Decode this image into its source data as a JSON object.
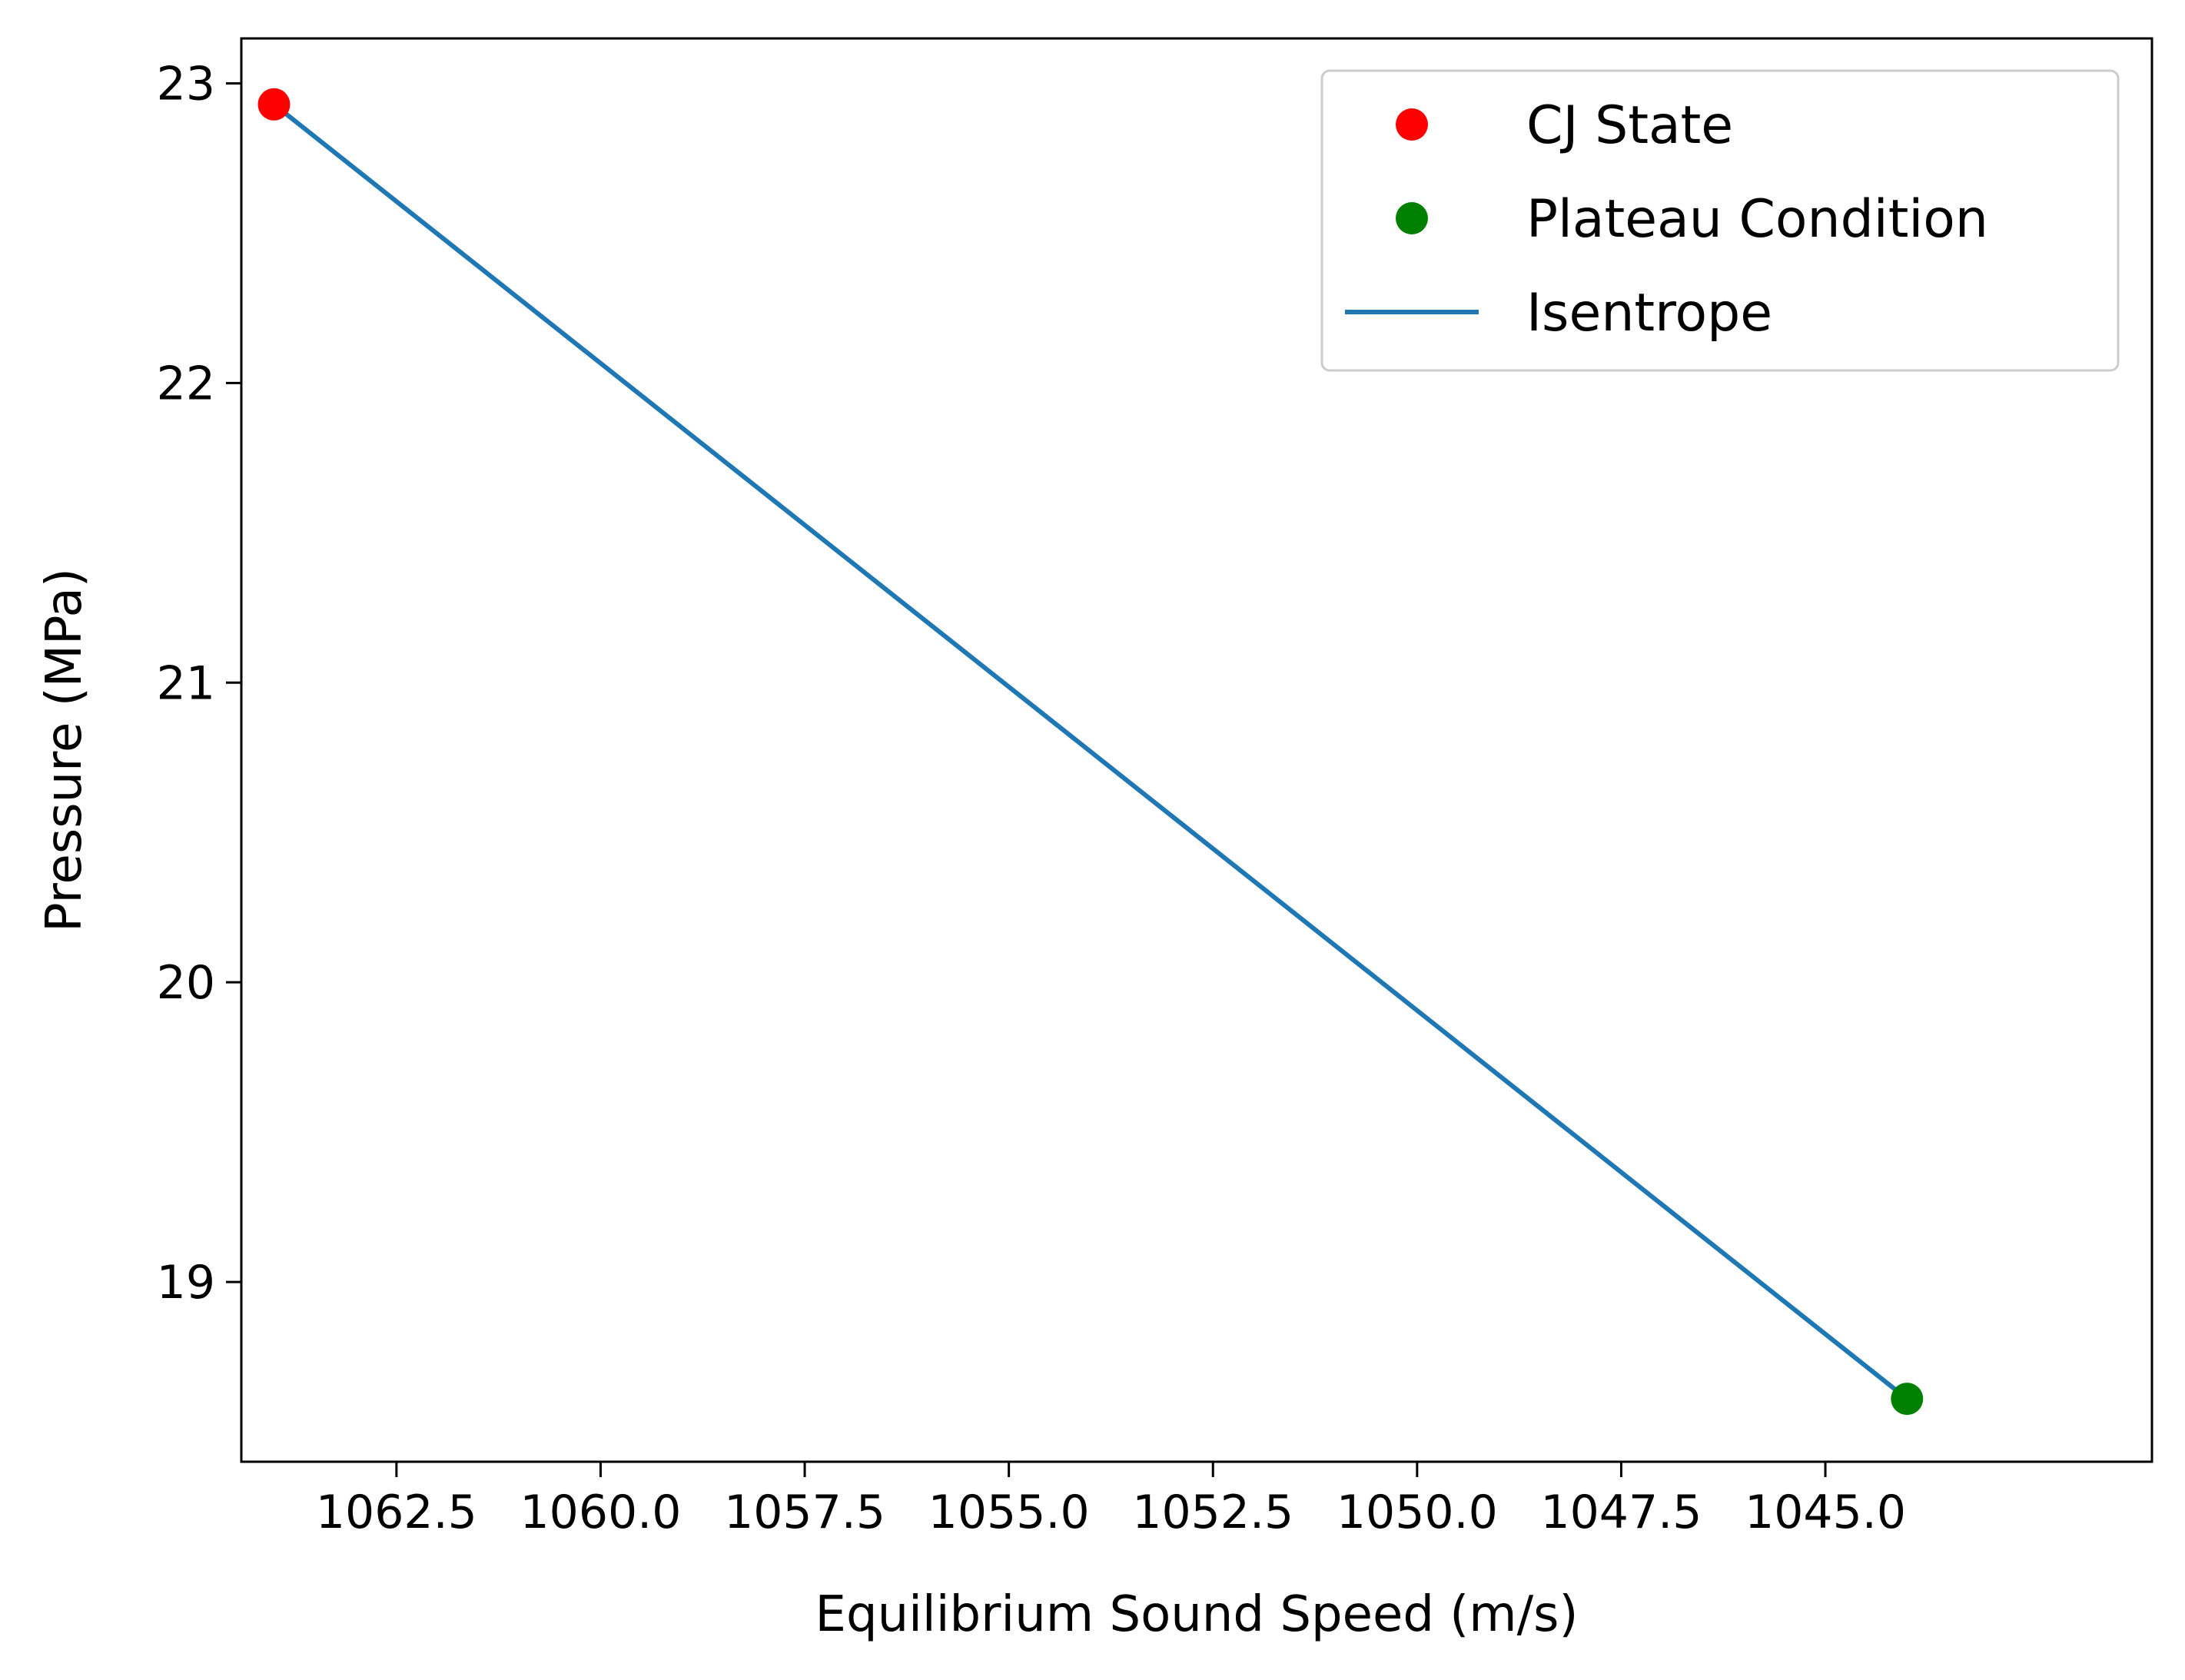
{
  "chart_data": {
    "type": "scatter",
    "title": "",
    "xlabel": "Equilibrium Sound Speed (m/s)",
    "ylabel": "Pressure (MPa)",
    "x_inverted": true,
    "xlim": [
      1064.4,
      1041.0
    ],
    "ylim": [
      18.4,
      23.15
    ],
    "xticks": [
      1062.5,
      1060.0,
      1057.5,
      1055.0,
      1052.5,
      1050.0,
      1047.5,
      1045.0
    ],
    "xtick_labels": [
      "1062.5",
      "1060.0",
      "1057.5",
      "1055.0",
      "1052.5",
      "1050.0",
      "1047.5",
      "1045.0"
    ],
    "yticks": [
      19,
      20,
      21,
      22,
      23
    ],
    "ytick_labels": [
      "19",
      "20",
      "21",
      "22",
      "23"
    ],
    "grid": false,
    "legend_position": "top-right",
    "series": [
      {
        "name": "CJ State",
        "kind": "scatter",
        "color": "#ff0000",
        "points": [
          [
            1064.0,
            22.93
          ]
        ]
      },
      {
        "name": "Plateau Condition",
        "kind": "scatter",
        "color": "#008000",
        "points": [
          [
            1044.0,
            18.61
          ]
        ]
      },
      {
        "name": "Isentrope",
        "kind": "line",
        "color": "#1f77b4",
        "points": [
          [
            1064.0,
            22.93
          ],
          [
            1044.0,
            18.61
          ]
        ]
      }
    ]
  }
}
